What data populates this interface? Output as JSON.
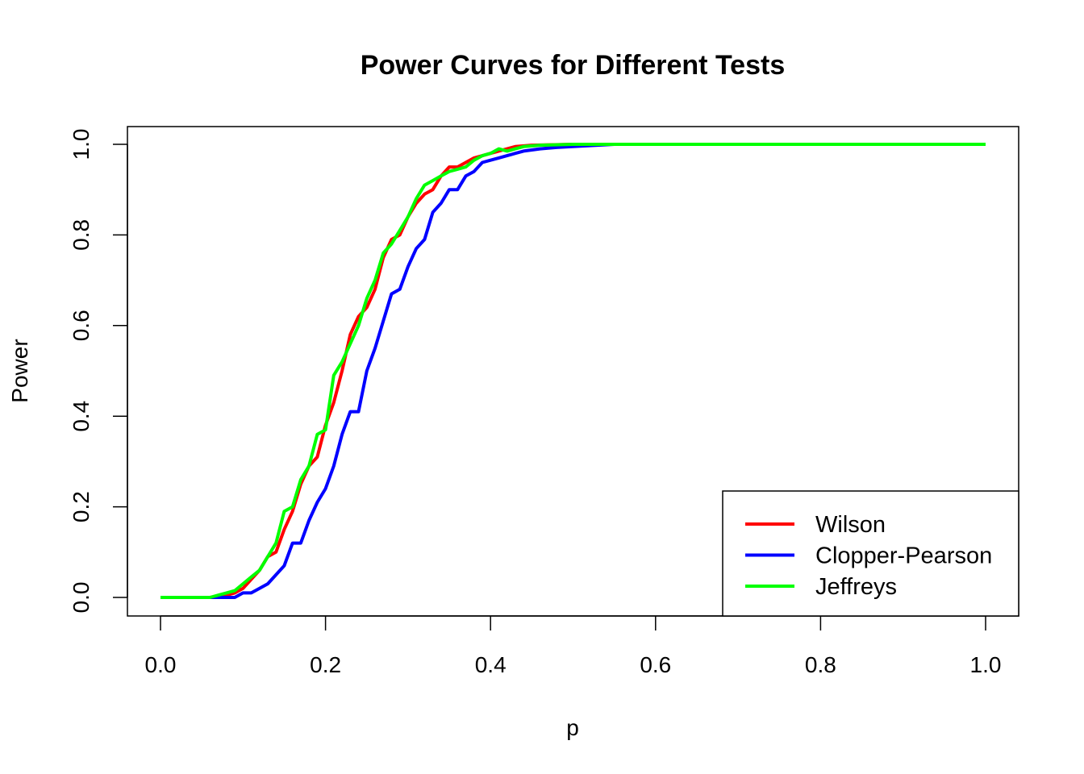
{
  "chart_data": {
    "type": "line",
    "title": "Power Curves for Different Tests",
    "xlabel": "p",
    "ylabel": "Power",
    "xlim": [
      0,
      1
    ],
    "ylim": [
      0,
      1
    ],
    "x_ticks": [
      "0.0",
      "0.2",
      "0.4",
      "0.6",
      "0.8",
      "1.0"
    ],
    "y_ticks": [
      "0.0",
      "0.2",
      "0.4",
      "0.6",
      "0.8",
      "1.0"
    ],
    "legend_position": "bottom-right",
    "grid": false,
    "series": [
      {
        "name": "Wilson",
        "color": "#ff0000",
        "points": [
          [
            0.0,
            0.0
          ],
          [
            0.06,
            0.0
          ],
          [
            0.08,
            0.005
          ],
          [
            0.09,
            0.01
          ],
          [
            0.1,
            0.02
          ],
          [
            0.11,
            0.04
          ],
          [
            0.12,
            0.06
          ],
          [
            0.13,
            0.09
          ],
          [
            0.14,
            0.1
          ],
          [
            0.15,
            0.15
          ],
          [
            0.16,
            0.19
          ],
          [
            0.17,
            0.25
          ],
          [
            0.18,
            0.29
          ],
          [
            0.19,
            0.31
          ],
          [
            0.2,
            0.38
          ],
          [
            0.21,
            0.43
          ],
          [
            0.22,
            0.5
          ],
          [
            0.23,
            0.58
          ],
          [
            0.24,
            0.62
          ],
          [
            0.25,
            0.64
          ],
          [
            0.26,
            0.68
          ],
          [
            0.27,
            0.75
          ],
          [
            0.28,
            0.79
          ],
          [
            0.29,
            0.8
          ],
          [
            0.3,
            0.84
          ],
          [
            0.31,
            0.87
          ],
          [
            0.32,
            0.89
          ],
          [
            0.33,
            0.9
          ],
          [
            0.34,
            0.93
          ],
          [
            0.35,
            0.95
          ],
          [
            0.36,
            0.95
          ],
          [
            0.37,
            0.96
          ],
          [
            0.38,
            0.97
          ],
          [
            0.39,
            0.975
          ],
          [
            0.4,
            0.98
          ],
          [
            0.41,
            0.985
          ],
          [
            0.42,
            0.99
          ],
          [
            0.43,
            0.995
          ],
          [
            0.45,
            0.998
          ],
          [
            0.5,
            1.0
          ],
          [
            1.0,
            1.0
          ]
        ]
      },
      {
        "name": "Clopper-Pearson",
        "color": "#0000ff",
        "points": [
          [
            0.0,
            0.0
          ],
          [
            0.09,
            0.0
          ],
          [
            0.1,
            0.01
          ],
          [
            0.11,
            0.01
          ],
          [
            0.12,
            0.02
          ],
          [
            0.13,
            0.03
          ],
          [
            0.14,
            0.05
          ],
          [
            0.15,
            0.07
          ],
          [
            0.16,
            0.12
          ],
          [
            0.17,
            0.12
          ],
          [
            0.18,
            0.17
          ],
          [
            0.19,
            0.21
          ],
          [
            0.2,
            0.24
          ],
          [
            0.21,
            0.29
          ],
          [
            0.22,
            0.36
          ],
          [
            0.23,
            0.41
          ],
          [
            0.24,
            0.41
          ],
          [
            0.25,
            0.5
          ],
          [
            0.26,
            0.55
          ],
          [
            0.27,
            0.61
          ],
          [
            0.28,
            0.67
          ],
          [
            0.29,
            0.68
          ],
          [
            0.3,
            0.73
          ],
          [
            0.31,
            0.77
          ],
          [
            0.32,
            0.79
          ],
          [
            0.33,
            0.85
          ],
          [
            0.34,
            0.87
          ],
          [
            0.35,
            0.9
          ],
          [
            0.36,
            0.9
          ],
          [
            0.37,
            0.93
          ],
          [
            0.38,
            0.94
          ],
          [
            0.39,
            0.96
          ],
          [
            0.4,
            0.965
          ],
          [
            0.41,
            0.97
          ],
          [
            0.42,
            0.975
          ],
          [
            0.43,
            0.98
          ],
          [
            0.44,
            0.985
          ],
          [
            0.46,
            0.99
          ],
          [
            0.48,
            0.993
          ],
          [
            0.5,
            0.995
          ],
          [
            0.55,
            1.0
          ],
          [
            1.0,
            1.0
          ]
        ]
      },
      {
        "name": "Jeffreys",
        "color": "#00ff00",
        "points": [
          [
            0.0,
            0.0
          ],
          [
            0.06,
            0.0
          ],
          [
            0.07,
            0.005
          ],
          [
            0.08,
            0.01
          ],
          [
            0.09,
            0.015
          ],
          [
            0.1,
            0.03
          ],
          [
            0.11,
            0.045
          ],
          [
            0.12,
            0.06
          ],
          [
            0.13,
            0.09
          ],
          [
            0.14,
            0.12
          ],
          [
            0.15,
            0.19
          ],
          [
            0.16,
            0.2
          ],
          [
            0.17,
            0.26
          ],
          [
            0.18,
            0.29
          ],
          [
            0.19,
            0.36
          ],
          [
            0.2,
            0.37
          ],
          [
            0.21,
            0.49
          ],
          [
            0.22,
            0.52
          ],
          [
            0.23,
            0.56
          ],
          [
            0.24,
            0.6
          ],
          [
            0.25,
            0.66
          ],
          [
            0.26,
            0.7
          ],
          [
            0.27,
            0.76
          ],
          [
            0.28,
            0.78
          ],
          [
            0.29,
            0.81
          ],
          [
            0.3,
            0.84
          ],
          [
            0.31,
            0.88
          ],
          [
            0.32,
            0.91
          ],
          [
            0.33,
            0.92
          ],
          [
            0.34,
            0.93
          ],
          [
            0.35,
            0.94
          ],
          [
            0.36,
            0.945
          ],
          [
            0.37,
            0.95
          ],
          [
            0.38,
            0.965
          ],
          [
            0.39,
            0.975
          ],
          [
            0.4,
            0.98
          ],
          [
            0.41,
            0.99
          ],
          [
            0.42,
            0.985
          ],
          [
            0.43,
            0.99
          ],
          [
            0.44,
            0.995
          ],
          [
            0.46,
            0.998
          ],
          [
            0.5,
            1.0
          ],
          [
            1.0,
            1.0
          ]
        ]
      }
    ]
  }
}
